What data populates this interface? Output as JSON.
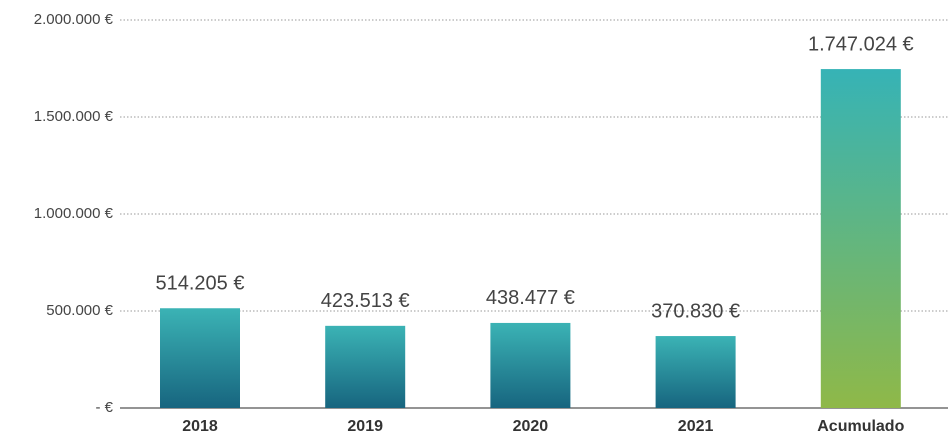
{
  "chart_data": {
    "type": "bar",
    "categories": [
      "2018",
      "2019",
      "2020",
      "2021",
      "Acumulado"
    ],
    "values": [
      514205,
      423513,
      438477,
      370830,
      1747024
    ],
    "value_labels": [
      "514.205 €",
      "423.513 €",
      "438.477 €",
      "370.830 €",
      "1.747.024 €"
    ],
    "colors": [
      [
        "#3bb3b5",
        "#17657f"
      ],
      [
        "#3bb3b5",
        "#17657f"
      ],
      [
        "#3bb3b5",
        "#17657f"
      ],
      [
        "#3bb3b5",
        "#17657f"
      ],
      [
        "#36b3b6",
        "#8fb848"
      ]
    ],
    "ylim": [
      0,
      2000000
    ],
    "yticks": [
      {
        "value": 0,
        "label": "- €"
      },
      {
        "value": 500000,
        "label": "500.000 €"
      },
      {
        "value": 1000000,
        "label": "1.000.000 €"
      },
      {
        "value": 1500000,
        "label": "1.500.000 €"
      },
      {
        "value": 2000000,
        "label": "2.000.000 €"
      }
    ],
    "grid": true
  }
}
